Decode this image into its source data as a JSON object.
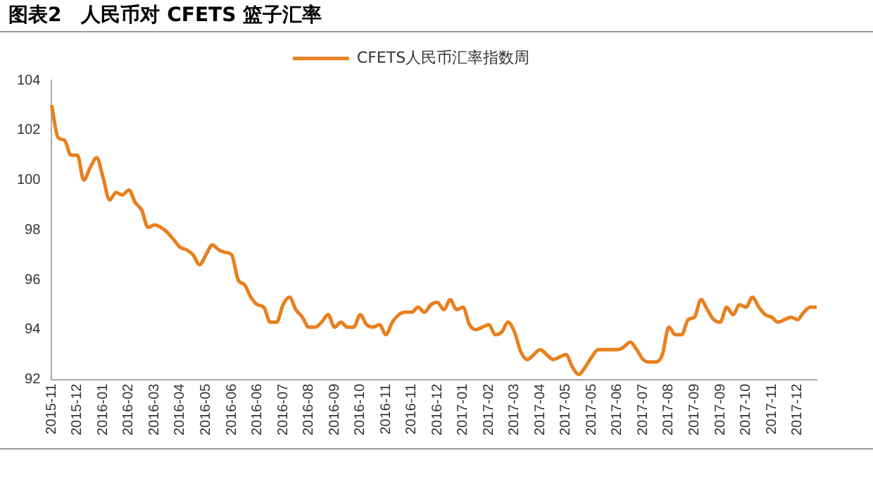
{
  "chart_data": {
    "type": "line",
    "title": "图表2　人民币对 CFETS 篮子汇率",
    "categories": [
      "2015-11",
      null,
      null,
      null,
      "2015-12",
      null,
      null,
      null,
      "2016-01",
      null,
      null,
      null,
      "2016-02",
      null,
      null,
      null,
      "2016-03",
      null,
      null,
      null,
      "2016-04",
      null,
      null,
      null,
      "2016-05",
      null,
      null,
      null,
      "2016-06",
      null,
      null,
      null,
      "2016-06",
      null,
      null,
      null,
      "2016-07",
      null,
      null,
      null,
      "2016-08",
      null,
      null,
      null,
      "2016-09",
      null,
      null,
      null,
      "2016-10",
      null,
      null,
      null,
      "2016-11",
      null,
      null,
      null,
      "2016-11",
      null,
      null,
      null,
      "2016-12",
      null,
      null,
      null,
      "2017-01",
      null,
      null,
      null,
      "2017-02",
      null,
      null,
      null,
      "2017-03",
      null,
      null,
      null,
      "2017-04",
      null,
      null,
      null,
      "2017-05",
      null,
      null,
      null,
      "2017-05",
      null,
      null,
      null,
      "2017-06",
      null,
      null,
      null,
      "2017-07",
      null,
      null,
      null,
      "2017-08",
      null,
      null,
      null,
      "2017-09",
      null,
      null,
      null,
      "2017-09",
      null,
      null,
      null,
      "2017-10",
      null,
      null,
      null,
      "2017-11",
      null,
      null,
      null,
      "2017-12",
      null,
      null,
      null
    ],
    "series": [
      {
        "name": "CFETS人民币汇率指数周",
        "color": "#e8801e",
        "values": [
          103.0,
          101.7,
          101.6,
          101.0,
          101.0,
          100.0,
          100.5,
          100.9,
          100.1,
          99.2,
          99.5,
          99.4,
          99.6,
          99.1,
          98.8,
          98.1,
          98.2,
          98.1,
          97.9,
          97.6,
          97.3,
          97.2,
          97.0,
          96.6,
          97.0,
          97.4,
          97.2,
          97.1,
          97.0,
          96.0,
          95.8,
          95.3,
          95.0,
          94.9,
          94.3,
          94.3,
          95.0,
          95.3,
          94.8,
          94.5,
          94.1,
          94.1,
          94.3,
          94.6,
          94.1,
          94.3,
          94.1,
          94.1,
          94.6,
          94.2,
          94.1,
          94.2,
          93.8,
          94.3,
          94.6,
          94.7,
          94.7,
          94.9,
          94.7,
          95.0,
          95.1,
          94.8,
          95.2,
          94.8,
          94.9,
          94.2,
          94.0,
          94.1,
          94.2,
          93.8,
          93.9,
          94.3,
          93.9,
          93.1,
          92.8,
          93.0,
          93.2,
          93.0,
          92.8,
          92.9,
          93.0,
          92.5,
          92.2,
          92.5,
          92.9,
          93.2,
          93.2,
          93.2,
          93.2,
          93.3,
          93.5,
          93.2,
          92.8,
          92.7,
          92.7,
          93.0,
          94.1,
          93.8,
          93.8,
          94.4,
          94.5,
          95.2,
          94.8,
          94.4,
          94.3,
          94.9,
          94.6,
          95.0,
          94.9,
          95.3,
          94.9,
          94.6,
          94.5,
          94.3,
          94.4,
          94.5,
          94.4,
          94.7,
          94.9,
          94.9
        ]
      }
    ],
    "ylim": [
      92,
      104
    ],
    "yticks": [
      92,
      94,
      96,
      98,
      100,
      102,
      104
    ],
    "grid": false,
    "legend": "top",
    "marker": "none",
    "line_style": "solid"
  }
}
